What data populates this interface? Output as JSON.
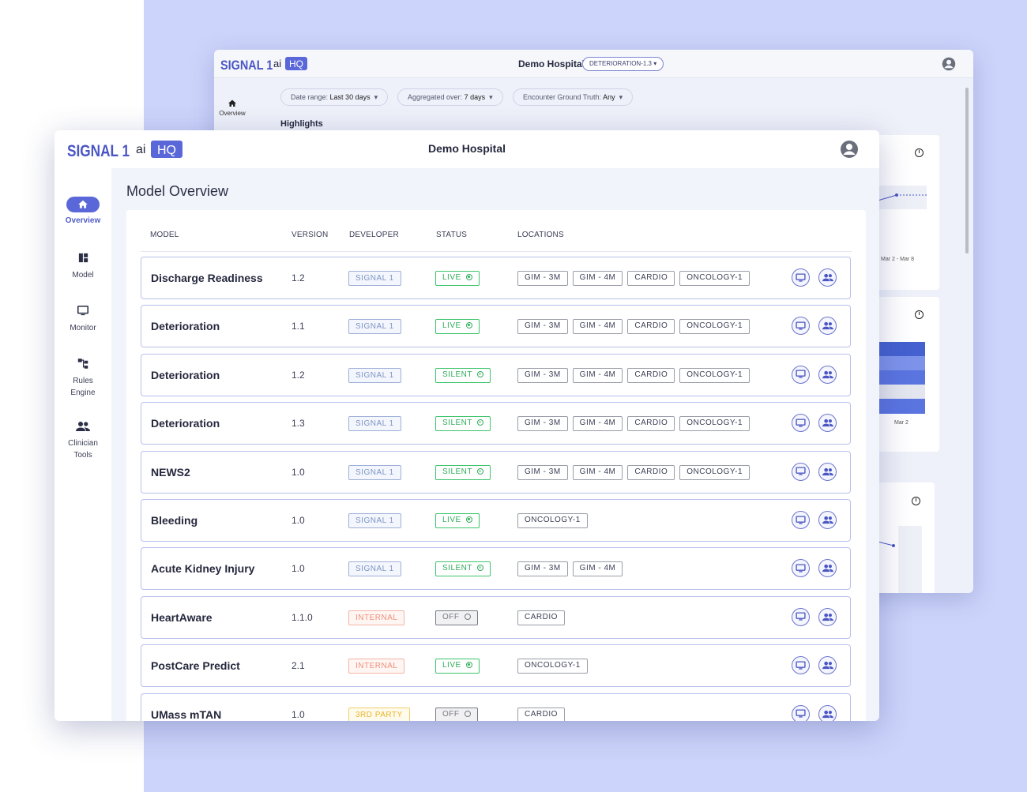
{
  "brand": {
    "name": "SIGNAL 1",
    "ai": "ai",
    "hq": "HQ"
  },
  "colors": {
    "accent": "#5a67d8",
    "live": "#2fae5a",
    "background": "#ccd4fb"
  },
  "back_window": {
    "hospital": "Demo Hospital",
    "model_chip": "DETERIORATION-1.3",
    "sidebar": [
      {
        "label": "Overview",
        "icon": "home-icon"
      }
    ],
    "filters": [
      {
        "label": "Date range:",
        "value": "Last 30 days"
      },
      {
        "label": "Aggregated over:",
        "value": "7 days"
      },
      {
        "label": "Encounter Ground Truth:",
        "value": "Any"
      }
    ],
    "highlights_title": "Highlights",
    "axis_label_1": "Mar 2 - Mar 8",
    "axis_label_2": "Mar 2"
  },
  "front_window": {
    "hospital": "Demo Hospital",
    "sidebar": [
      {
        "label": "Overview",
        "icon": "home-icon",
        "active": true
      },
      {
        "label": "Model",
        "icon": "dashboard-icon",
        "active": false
      },
      {
        "label": "Monitor",
        "icon": "monitor-icon",
        "active": false
      },
      {
        "label": "Rules Engine",
        "icon": "rules-tree-icon",
        "active": false
      },
      {
        "label": "Clinician Tools",
        "icon": "people-icon",
        "active": false
      }
    ],
    "page_title": "Model Overview",
    "columns": {
      "model": "MODEL",
      "version": "VERSION",
      "developer": "DEVELOPER",
      "status": "STATUS",
      "locations": "LOCATIONS"
    },
    "rows": [
      {
        "name": "Discharge Readiness",
        "version": "1.2",
        "developer": "SIGNAL 1",
        "dev_type": "signal",
        "status": "LIVE",
        "status_type": "live",
        "locations": [
          "GIM - 3M",
          "GIM - 4M",
          "CARDIO",
          "ONCOLOGY-1"
        ]
      },
      {
        "name": "Deterioration",
        "version": "1.1",
        "developer": "SIGNAL 1",
        "dev_type": "signal",
        "status": "LIVE",
        "status_type": "live",
        "locations": [
          "GIM - 3M",
          "GIM - 4M",
          "CARDIO",
          "ONCOLOGY-1"
        ]
      },
      {
        "name": "Deterioration",
        "version": "1.2",
        "developer": "SIGNAL 1",
        "dev_type": "signal",
        "status": "SILENT",
        "status_type": "silent",
        "locations": [
          "GIM - 3M",
          "GIM - 4M",
          "CARDIO",
          "ONCOLOGY-1"
        ]
      },
      {
        "name": "Deterioration",
        "version": "1.3",
        "developer": "SIGNAL 1",
        "dev_type": "signal",
        "status": "SILENT",
        "status_type": "silent",
        "locations": [
          "GIM - 3M",
          "GIM - 4M",
          "CARDIO",
          "ONCOLOGY-1"
        ]
      },
      {
        "name": "NEWS2",
        "version": "1.0",
        "developer": "SIGNAL 1",
        "dev_type": "signal",
        "status": "SILENT",
        "status_type": "silent",
        "locations": [
          "GIM - 3M",
          "GIM - 4M",
          "CARDIO",
          "ONCOLOGY-1"
        ]
      },
      {
        "name": "Bleeding",
        "version": "1.0",
        "developer": "SIGNAL 1",
        "dev_type": "signal",
        "status": "LIVE",
        "status_type": "live",
        "locations": [
          "ONCOLOGY-1"
        ]
      },
      {
        "name": "Acute Kidney Injury",
        "version": "1.0",
        "developer": "SIGNAL 1",
        "dev_type": "signal",
        "status": "SILENT",
        "status_type": "silent",
        "locations": [
          "GIM - 3M",
          "GIM - 4M"
        ]
      },
      {
        "name": "HeartAware",
        "version": "1.1.0",
        "developer": "INTERNAL",
        "dev_type": "internal",
        "status": "OFF",
        "status_type": "off",
        "locations": [
          "CARDIO"
        ]
      },
      {
        "name": "PostCare Predict",
        "version": "2.1",
        "developer": "INTERNAL",
        "dev_type": "internal",
        "status": "LIVE",
        "status_type": "live",
        "locations": [
          "ONCOLOGY-1"
        ]
      },
      {
        "name": "UMass mTAN",
        "version": "1.0",
        "developer": "3RD PARTY",
        "dev_type": "3rd",
        "status": "OFF",
        "status_type": "off",
        "locations": [
          "CARDIO"
        ]
      }
    ]
  }
}
